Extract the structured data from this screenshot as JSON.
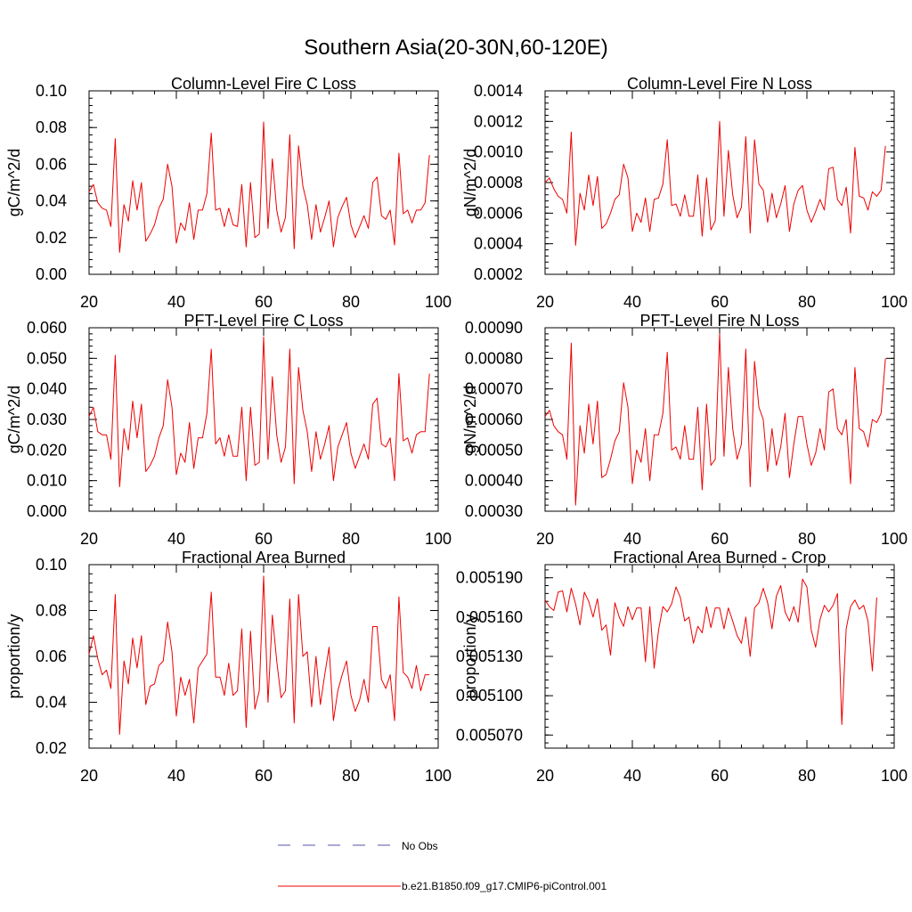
{
  "figure": {
    "title": "Southern Asia(20-30N,60-120E)"
  },
  "legend": {
    "items": [
      {
        "label": "No Obs",
        "color": "#5555aa",
        "dash": true
      },
      {
        "label": "b.e21.B1850.f09_g17.CMIP6-piControl.001",
        "color": "#ee0000",
        "dash": false
      }
    ]
  },
  "chart_data": [
    {
      "type": "line",
      "title": "Column-Level Fire C Loss",
      "ylabel": "gC/m^2/d",
      "xlim": [
        20,
        100
      ],
      "ylim": [
        0.0,
        0.1
      ],
      "xticks": [
        20,
        40,
        60,
        80,
        100
      ],
      "xtick_labels": [
        "20",
        "40",
        "60",
        "80",
        "100"
      ],
      "yticks": [
        0.0,
        0.02,
        0.04,
        0.06,
        0.08,
        0.1
      ],
      "ytick_labels": [
        "0.00",
        "0.02",
        "0.04",
        "0.06",
        "0.08",
        "0.10"
      ],
      "x_start": 20,
      "series": [
        {
          "name": "b.e21.B1850.f09_g17.CMIP6-piControl.001",
          "color": "#ee0000",
          "values": [
            0.045,
            0.049,
            0.039,
            0.036,
            0.035,
            0.026,
            0.074,
            0.012,
            0.038,
            0.029,
            0.051,
            0.035,
            0.05,
            0.018,
            0.022,
            0.027,
            0.036,
            0.041,
            0.06,
            0.048,
            0.017,
            0.028,
            0.024,
            0.039,
            0.019,
            0.035,
            0.035,
            0.044,
            0.077,
            0.035,
            0.036,
            0.026,
            0.036,
            0.027,
            0.026,
            0.049,
            0.015,
            0.05,
            0.02,
            0.022,
            0.083,
            0.025,
            0.063,
            0.035,
            0.023,
            0.031,
            0.076,
            0.014,
            0.07,
            0.048,
            0.038,
            0.019,
            0.038,
            0.023,
            0.031,
            0.04,
            0.015,
            0.031,
            0.037,
            0.042,
            0.027,
            0.02,
            0.026,
            0.032,
            0.025,
            0.05,
            0.053,
            0.032,
            0.03,
            0.035,
            0.016,
            0.066,
            0.033,
            0.035,
            0.028,
            0.035,
            0.035,
            0.039,
            0.065
          ]
        }
      ]
    },
    {
      "type": "line",
      "title": "Column-Level Fire N Loss",
      "ylabel": "gN/m^2/d",
      "xlim": [
        20,
        100
      ],
      "ylim": [
        0.0002,
        0.0014
      ],
      "xticks": [
        20,
        40,
        60,
        80,
        100
      ],
      "xtick_labels": [
        "20",
        "40",
        "60",
        "80",
        "100"
      ],
      "yticks": [
        0.0002,
        0.0004,
        0.0006,
        0.0008,
        0.001,
        0.0012,
        0.0014
      ],
      "ytick_labels": [
        "0.0002",
        "0.0004",
        "0.0006",
        "0.0008",
        "0.0010",
        "0.0012",
        "0.0014"
      ],
      "x_start": 20,
      "series": [
        {
          "name": "b.e21.B1850.f09_g17.CMIP6-piControl.001",
          "color": "#ee0000",
          "values": [
            0.0008,
            0.00083,
            0.00076,
            0.00071,
            0.00069,
            0.0006,
            0.00113,
            0.00039,
            0.00073,
            0.00062,
            0.00085,
            0.00065,
            0.00084,
            0.0005,
            0.00053,
            0.0006,
            0.00069,
            0.00072,
            0.00092,
            0.00083,
            0.00048,
            0.0006,
            0.00054,
            0.0007,
            0.00048,
            0.00069,
            0.0007,
            0.00079,
            0.00108,
            0.00065,
            0.00066,
            0.00058,
            0.00072,
            0.00058,
            0.00058,
            0.00085,
            0.00045,
            0.00083,
            0.00049,
            0.00055,
            0.0012,
            0.00058,
            0.00101,
            0.00072,
            0.00057,
            0.00064,
            0.0011,
            0.00047,
            0.00108,
            0.00079,
            0.00075,
            0.00054,
            0.00073,
            0.00057,
            0.00066,
            0.00078,
            0.00048,
            0.00066,
            0.00075,
            0.00078,
            0.00062,
            0.00054,
            0.00061,
            0.00069,
            0.00062,
            0.00089,
            0.0009,
            0.00069,
            0.00065,
            0.00077,
            0.00047,
            0.00103,
            0.00071,
            0.0007,
            0.00062,
            0.00074,
            0.00071,
            0.00075,
            0.00104
          ]
        }
      ]
    },
    {
      "type": "line",
      "title": "PFT-Level Fire C Loss",
      "ylabel": "gC/m^2/d",
      "xlim": [
        20,
        100
      ],
      "ylim": [
        0.0,
        0.06
      ],
      "xticks": [
        20,
        40,
        60,
        80,
        100
      ],
      "xtick_labels": [
        "20",
        "40",
        "60",
        "80",
        "100"
      ],
      "yticks": [
        0.0,
        0.01,
        0.02,
        0.03,
        0.04,
        0.05,
        0.06
      ],
      "ytick_labels": [
        "0.000",
        "0.010",
        "0.020",
        "0.030",
        "0.040",
        "0.050",
        "0.060"
      ],
      "x_start": 20,
      "series": [
        {
          "name": "b.e21.B1850.f09_g17.CMIP6-piControl.001",
          "color": "#ee0000",
          "values": [
            0.031,
            0.034,
            0.026,
            0.025,
            0.025,
            0.017,
            0.051,
            0.008,
            0.027,
            0.02,
            0.036,
            0.024,
            0.035,
            0.013,
            0.015,
            0.018,
            0.024,
            0.028,
            0.043,
            0.034,
            0.012,
            0.019,
            0.016,
            0.029,
            0.014,
            0.024,
            0.024,
            0.032,
            0.053,
            0.022,
            0.024,
            0.018,
            0.025,
            0.018,
            0.018,
            0.034,
            0.01,
            0.034,
            0.015,
            0.016,
            0.057,
            0.017,
            0.044,
            0.025,
            0.016,
            0.021,
            0.053,
            0.009,
            0.047,
            0.033,
            0.026,
            0.013,
            0.026,
            0.017,
            0.022,
            0.028,
            0.01,
            0.021,
            0.025,
            0.029,
            0.019,
            0.014,
            0.018,
            0.022,
            0.017,
            0.035,
            0.037,
            0.022,
            0.021,
            0.024,
            0.01,
            0.045,
            0.023,
            0.024,
            0.019,
            0.025,
            0.026,
            0.026,
            0.045
          ]
        }
      ]
    },
    {
      "type": "line",
      "title": "PFT-Level Fire N Loss",
      "ylabel": "gN/m^2/d",
      "xlim": [
        20,
        100
      ],
      "ylim": [
        0.0003,
        0.0009
      ],
      "xticks": [
        20,
        40,
        60,
        80,
        100
      ],
      "xtick_labels": [
        "20",
        "40",
        "60",
        "80",
        "100"
      ],
      "yticks": [
        0.0003,
        0.0004,
        0.0005,
        0.0006,
        0.0007,
        0.0008,
        0.0009
      ],
      "ytick_labels": [
        "0.00030",
        "0.00040",
        "0.00050",
        "0.00060",
        "0.00070",
        "0.00080",
        "0.00090"
      ],
      "x_start": 20,
      "series": [
        {
          "name": "b.e21.B1850.f09_g17.CMIP6-piControl.001",
          "color": "#ee0000",
          "values": [
            0.00061,
            0.00063,
            0.00058,
            0.00056,
            0.00055,
            0.00047,
            0.00085,
            0.00032,
            0.00058,
            0.00049,
            0.00065,
            0.00052,
            0.00066,
            0.00041,
            0.00042,
            0.00047,
            0.00053,
            0.00056,
            0.00072,
            0.00064,
            0.00039,
            0.0005,
            0.00046,
            0.00057,
            0.0004,
            0.00055,
            0.00055,
            0.00062,
            0.00082,
            0.0005,
            0.00051,
            0.00047,
            0.00058,
            0.00047,
            0.00047,
            0.00064,
            0.00037,
            0.00065,
            0.00045,
            0.00047,
            0.00088,
            0.00048,
            0.00077,
            0.00057,
            0.00047,
            0.00052,
            0.00083,
            0.00038,
            0.00079,
            0.00064,
            0.0006,
            0.00043,
            0.00057,
            0.00045,
            0.00051,
            0.00062,
            0.00041,
            0.00052,
            0.00061,
            0.00061,
            0.00052,
            0.00045,
            0.00049,
            0.00057,
            0.0005,
            0.00069,
            0.0007,
            0.00057,
            0.00055,
            0.0006,
            0.00039,
            0.00077,
            0.00057,
            0.00056,
            0.00051,
            0.0006,
            0.00059,
            0.00062,
            0.0008
          ]
        }
      ]
    },
    {
      "type": "line",
      "title": "Fractional Area Burned",
      "ylabel": "proportion/y",
      "xlim": [
        20,
        100
      ],
      "ylim": [
        0.02,
        0.1
      ],
      "xticks": [
        20,
        40,
        60,
        80,
        100
      ],
      "xtick_labels": [
        "20",
        "40",
        "60",
        "80",
        "100"
      ],
      "yticks": [
        0.02,
        0.04,
        0.06,
        0.08,
        0.1
      ],
      "ytick_labels": [
        "0.02",
        "0.04",
        "0.06",
        "0.08",
        "0.10"
      ],
      "x_start": 20,
      "series": [
        {
          "name": "b.e21.B1850.f09_g17.CMIP6-piControl.001",
          "color": "#ee0000",
          "values": [
            0.061,
            0.069,
            0.059,
            0.052,
            0.054,
            0.046,
            0.087,
            0.026,
            0.058,
            0.048,
            0.068,
            0.055,
            0.069,
            0.039,
            0.047,
            0.048,
            0.056,
            0.058,
            0.075,
            0.062,
            0.034,
            0.051,
            0.043,
            0.05,
            0.031,
            0.055,
            0.058,
            0.061,
            0.088,
            0.051,
            0.051,
            0.043,
            0.057,
            0.043,
            0.045,
            0.072,
            0.029,
            0.071,
            0.037,
            0.045,
            0.095,
            0.04,
            0.078,
            0.058,
            0.042,
            0.045,
            0.085,
            0.031,
            0.087,
            0.06,
            0.062,
            0.038,
            0.06,
            0.039,
            0.052,
            0.064,
            0.032,
            0.045,
            0.052,
            0.058,
            0.043,
            0.036,
            0.041,
            0.05,
            0.04,
            0.073,
            0.073,
            0.05,
            0.046,
            0.052,
            0.032,
            0.086,
            0.053,
            0.051,
            0.046,
            0.056,
            0.045,
            0.052,
            0.052
          ]
        }
      ]
    },
    {
      "type": "line",
      "title": "Fractional Area Burned - Crop",
      "ylabel": "proportion/y",
      "xlim": [
        20,
        100
      ],
      "ylim": [
        0.00506,
        0.0052
      ],
      "xticks": [
        20,
        40,
        60,
        80,
        100
      ],
      "xtick_labels": [
        "20",
        "40",
        "60",
        "80",
        "100"
      ],
      "yticks": [
        0.00507,
        0.0051,
        0.00513,
        0.00516,
        0.00519
      ],
      "ytick_labels": [
        "0.005070",
        "0.005100",
        "0.005130",
        "0.005160",
        "0.005190"
      ],
      "x_start": 20,
      "series": [
        {
          "name": "b.e21.B1850.f09_g17.CMIP6-piControl.001",
          "color": "#ee0000",
          "values": [
            0.005173,
            0.005168,
            0.005165,
            0.005179,
            0.00518,
            0.005164,
            0.005182,
            0.00517,
            0.005154,
            0.005179,
            0.005172,
            0.00516,
            0.005174,
            0.00515,
            0.005154,
            0.005131,
            0.005171,
            0.00516,
            0.005153,
            0.005168,
            0.005158,
            0.005167,
            0.005167,
            0.005126,
            0.005168,
            0.005121,
            0.00515,
            0.005168,
            0.005164,
            0.00517,
            0.005183,
            0.005175,
            0.005157,
            0.00516,
            0.00514,
            0.005153,
            0.005148,
            0.005168,
            0.005152,
            0.005167,
            0.005167,
            0.005151,
            0.005167,
            0.005157,
            0.005146,
            0.00514,
            0.00516,
            0.00513,
            0.005167,
            0.005171,
            0.005182,
            0.005171,
            0.005151,
            0.005176,
            0.005184,
            0.005164,
            0.005157,
            0.005168,
            0.005156,
            0.005189,
            0.005183,
            0.00515,
            0.005137,
            0.005158,
            0.005169,
            0.005164,
            0.005169,
            0.005178,
            0.005078,
            0.005151,
            0.005168,
            0.005173,
            0.005166,
            0.005169,
            0.005157,
            0.005119,
            0.005175
          ]
        }
      ]
    }
  ]
}
